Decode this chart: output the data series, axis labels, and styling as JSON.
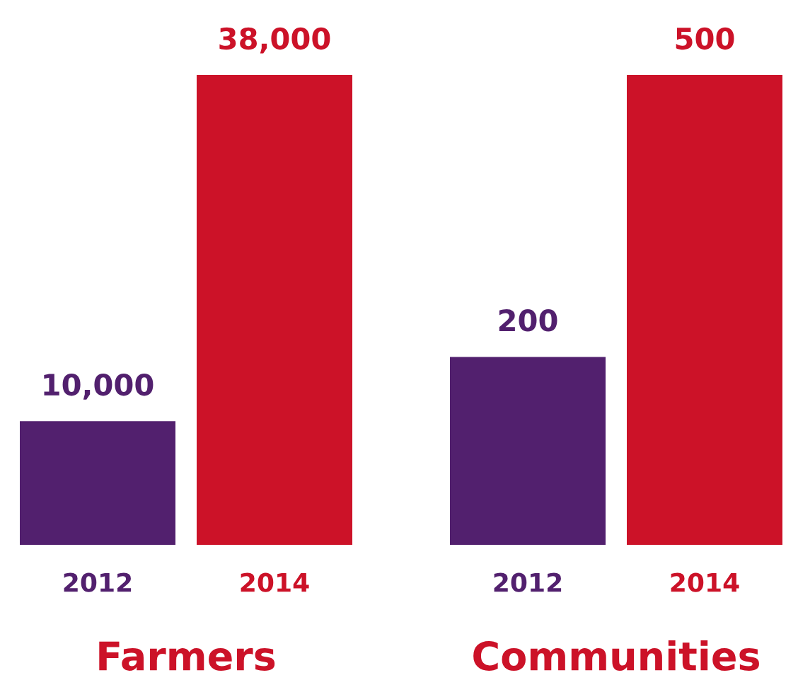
{
  "chart_data": [
    {
      "type": "bar",
      "xlabel": "Farmers",
      "categories": [
        "2012",
        "2014"
      ],
      "values": [
        10000,
        38000
      ],
      "colors": [
        "#52206e",
        "#cc1228"
      ],
      "value_labels": [
        "10,000",
        "38,000"
      ],
      "grid": false,
      "legend": false
    },
    {
      "type": "bar",
      "xlabel": "Communities",
      "categories": [
        "2012",
        "2014"
      ],
      "values": [
        200,
        500
      ],
      "colors": [
        "#52206e",
        "#cc1228"
      ],
      "value_labels": [
        "200",
        "500"
      ],
      "grid": false,
      "legend": false
    }
  ]
}
